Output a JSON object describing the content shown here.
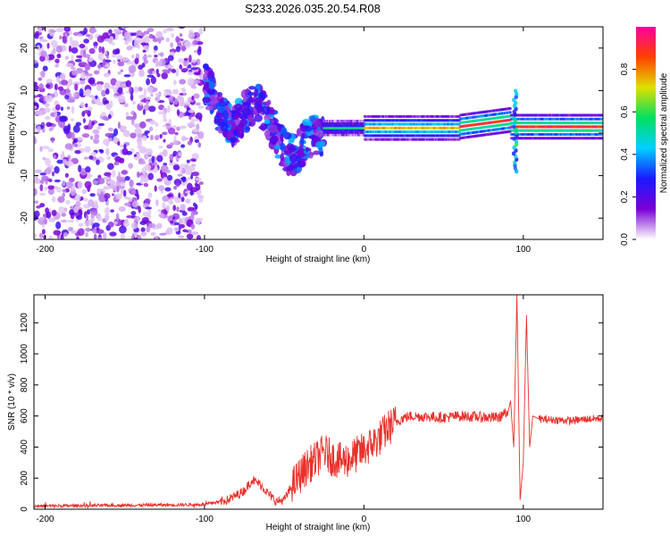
{
  "title": "S233.2026.035.20.54.R08",
  "chart_data": [
    {
      "type": "heatmap",
      "panel": "spectrogram",
      "xlabel": "Height of straight line (km)",
      "ylabel": "Frequency (Hz)",
      "xlim": [
        -207,
        150
      ],
      "ylim": [
        -25,
        25
      ],
      "xticks": [
        -200,
        -100,
        0,
        100
      ],
      "yticks": [
        -20,
        -10,
        0,
        10,
        20
      ],
      "colorbar": {
        "label": "Normalized spectral amplitude",
        "range": [
          0,
          1
        ],
        "ticks": [
          0.0,
          0.2,
          0.4,
          0.6,
          0.8
        ],
        "colors": [
          "#ffffff",
          "#7a00d6",
          "#1a1aff",
          "#00d0ff",
          "#00e060",
          "#e0e000",
          "#ff4000",
          "#ff00a0"
        ]
      },
      "features": [
        {
          "name": "noise",
          "x_range": [
            -207,
            -100
          ],
          "f_range": [
            -25,
            25
          ],
          "amplitude": 0.1
        },
        {
          "name": "wavy-band",
          "x_range": [
            -100,
            -25
          ],
          "f_center": [
            9,
            -9
          ],
          "amplitude": 0.3
        },
        {
          "name": "ridge",
          "x_range": [
            -25,
            150
          ],
          "f_center": 1.5,
          "amplitude": 0.85
        },
        {
          "name": "spike",
          "x": 95,
          "f_range": [
            -9,
            10
          ],
          "amplitude": 0.6
        }
      ]
    },
    {
      "type": "line",
      "panel": "snr",
      "xlabel": "Height of straight line (km)",
      "ylabel": "SNR (10 * v/v)",
      "xlim": [
        -207,
        150
      ],
      "ylim": [
        0,
        1380
      ],
      "xticks": [
        -200,
        -100,
        0,
        100
      ],
      "yticks": [
        0,
        200,
        400,
        600,
        800,
        1000,
        1200
      ],
      "series": [
        {
          "name": "SNR",
          "color": "#e8312c",
          "x": [
            -207,
            -150,
            -100,
            -85,
            -75,
            -70,
            -65,
            -60,
            -55,
            -50,
            -45,
            -40,
            -35,
            -30,
            -25,
            -20,
            -15,
            -10,
            -5,
            0,
            5,
            10,
            15,
            20,
            25,
            30,
            40,
            50,
            60,
            70,
            80,
            85,
            88,
            90,
            92,
            94,
            96,
            98,
            100,
            102,
            104,
            106,
            110,
            120,
            130,
            140,
            150
          ],
          "y": [
            20,
            25,
            30,
            60,
            120,
            190,
            160,
            100,
            50,
            60,
            150,
            220,
            280,
            320,
            370,
            330,
            310,
            320,
            350,
            380,
            420,
            460,
            520,
            560,
            590,
            600,
            595,
            590,
            600,
            595,
            590,
            590,
            620,
            600,
            700,
            400,
            1380,
            60,
            300,
            1250,
            400,
            600,
            580,
            575,
            570,
            580,
            585
          ]
        }
      ]
    }
  ]
}
